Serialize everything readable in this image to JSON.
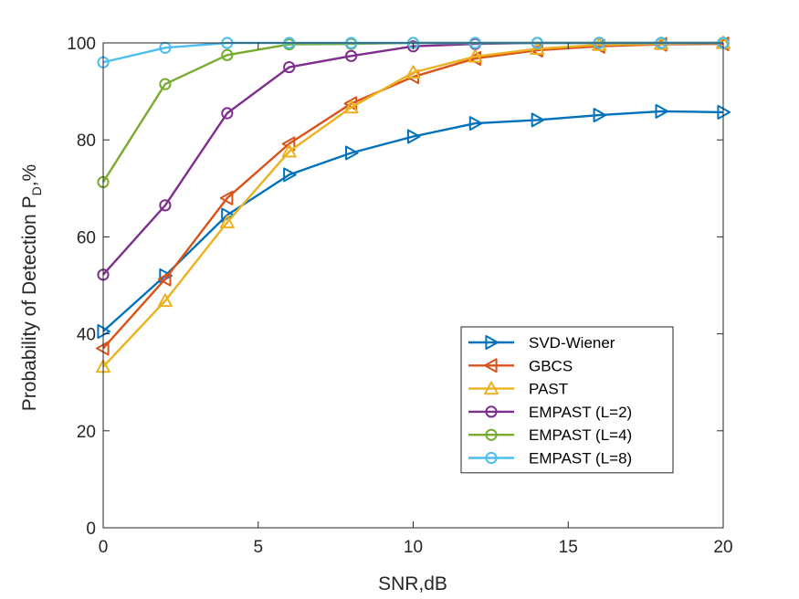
{
  "chart_data": {
    "type": "line",
    "title": "",
    "xlabel": "SNR,dB",
    "ylabel": {
      "main": "Probability of Detection P",
      "sub": "D",
      "suffix": ",%"
    },
    "xlim": [
      0,
      20
    ],
    "ylim": [
      0,
      100
    ],
    "xticks": [
      0,
      5,
      10,
      15,
      20
    ],
    "yticks": [
      0,
      20,
      40,
      60,
      80,
      100
    ],
    "grid": false,
    "legend_position": "bottom-right",
    "x": [
      0,
      2,
      4,
      6,
      8,
      10,
      12,
      14,
      16,
      18,
      20
    ],
    "series": [
      {
        "name": "SVD-Wiener",
        "color": "#0072BD",
        "marker": "triangle-right",
        "values": [
          40.5,
          52,
          64.5,
          72.8,
          77.3,
          80.7,
          83.4,
          84.1,
          85.1,
          85.9,
          85.7
        ]
      },
      {
        "name": "GBCS",
        "color": "#D95319",
        "marker": "triangle-left",
        "values": [
          37,
          51.3,
          68,
          79.2,
          87.5,
          93,
          96.8,
          98.5,
          99.3,
          99.7,
          99.8
        ]
      },
      {
        "name": "PAST",
        "color": "#EDB120",
        "marker": "triangle-up",
        "values": [
          33.2,
          46.8,
          63,
          77.6,
          86.7,
          93.9,
          97.2,
          98.8,
          99.6,
          99.8,
          100
        ]
      },
      {
        "name": "EMPAST (L=2)",
        "color": "#7E2F8E",
        "marker": "circle",
        "values": [
          52.2,
          66.5,
          85.5,
          95,
          97.3,
          99.3,
          99.8,
          100,
          100,
          100,
          100
        ]
      },
      {
        "name": "EMPAST (L=4)",
        "color": "#77AC30",
        "marker": "circle",
        "values": [
          71.3,
          91.5,
          97.5,
          99.7,
          99.8,
          100,
          100,
          100,
          100,
          100,
          100
        ]
      },
      {
        "name": "EMPAST (L=8)",
        "color": "#4DBEEE",
        "marker": "circle",
        "values": [
          96,
          99,
          100,
          100,
          100,
          100,
          100,
          100,
          100,
          100,
          100
        ]
      }
    ]
  }
}
